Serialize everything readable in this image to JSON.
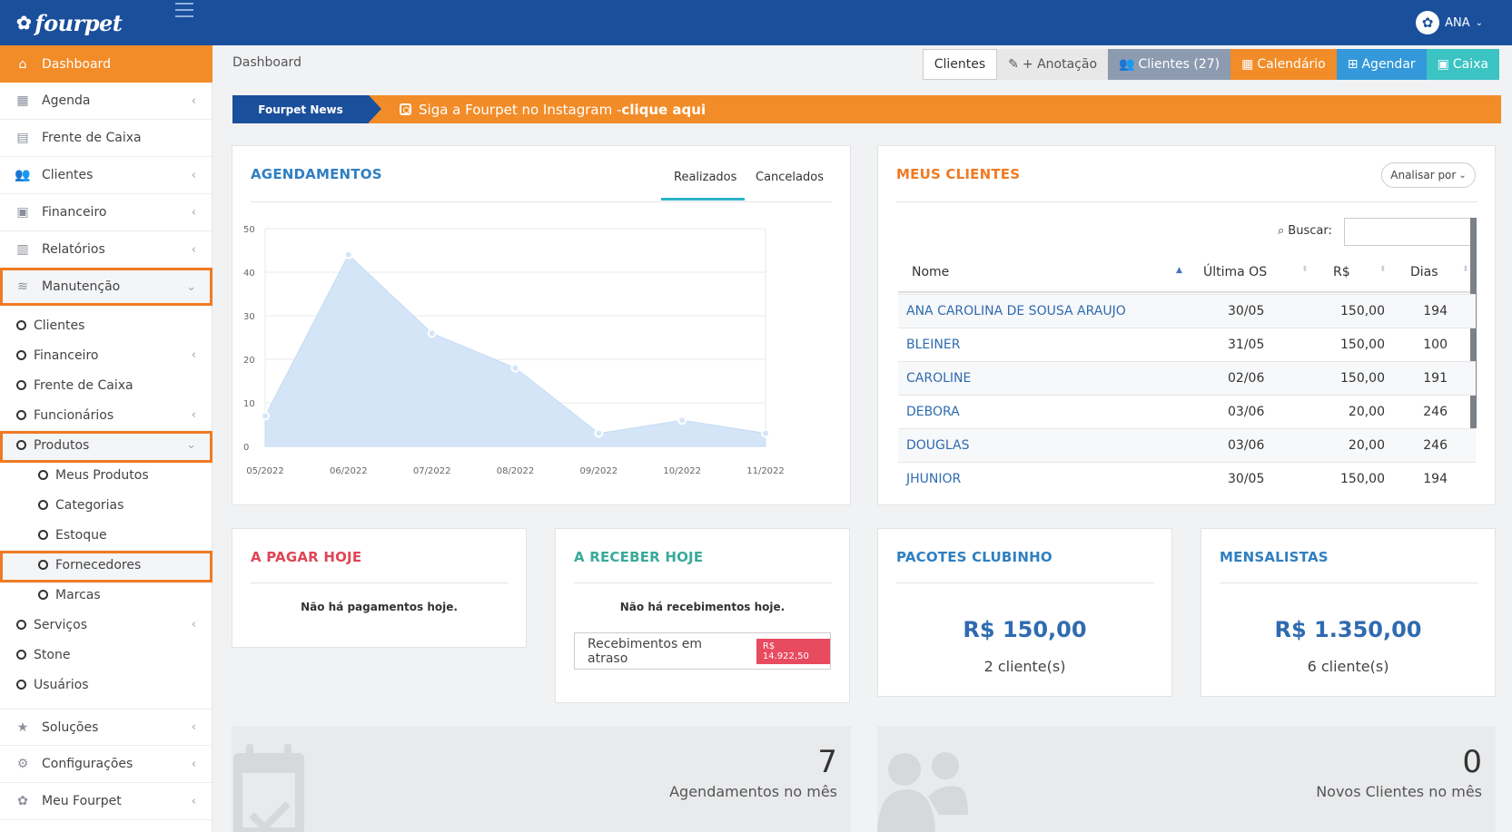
{
  "brand": {
    "name": "fourpet"
  },
  "user": {
    "name": "ANA"
  },
  "sidebar": {
    "items": [
      {
        "label": "Dashboard"
      },
      {
        "label": "Agenda"
      },
      {
        "label": "Frente de Caixa"
      },
      {
        "label": "Clientes"
      },
      {
        "label": "Financeiro"
      },
      {
        "label": "Relatórios"
      },
      {
        "label": "Manutenção"
      }
    ],
    "sub": [
      {
        "label": "Clientes"
      },
      {
        "label": "Financeiro"
      },
      {
        "label": "Frente de Caixa"
      },
      {
        "label": "Funcionários"
      },
      {
        "label": "Produtos"
      },
      {
        "label": "Meus Produtos"
      },
      {
        "label": "Categorias"
      },
      {
        "label": "Estoque"
      },
      {
        "label": "Fornecedores"
      },
      {
        "label": "Marcas"
      },
      {
        "label": "Serviços"
      },
      {
        "label": "Stone"
      },
      {
        "label": "Usuários"
      }
    ],
    "bottom": [
      {
        "label": "Soluções"
      },
      {
        "label": "Configurações"
      },
      {
        "label": "Meu Fourpet"
      }
    ]
  },
  "breadcrumb": "Dashboard",
  "topbuttons": {
    "clientes": "Clientes",
    "anotacao": "+ Anotação",
    "clientes_count": "Clientes (27)",
    "calendario": "Calendário",
    "agendar": "Agendar",
    "caixa": "Caixa"
  },
  "colors": {
    "orange": "#f28c28",
    "blue": "#1a4f9c",
    "gray": "#8d9bb0",
    "sky": "#3498db",
    "teal": "#3cc3c3",
    "red": "#e84a5f",
    "green": "#3aaa9a"
  },
  "news": {
    "label": "Fourpet News",
    "text": "Siga a Fourpet no Instagram - ",
    "link": "clique aqui"
  },
  "agendamentos": {
    "title": "AGENDAMENTOS",
    "tabs": [
      "Realizados",
      "Cancelados"
    ],
    "chart_data": {
      "type": "area",
      "categories": [
        "05/2022",
        "06/2022",
        "07/2022",
        "08/2022",
        "09/2022",
        "10/2022",
        "11/2022"
      ],
      "values": [
        7,
        44,
        26,
        18,
        3,
        6,
        3
      ],
      "ylim": [
        0,
        50
      ],
      "yticks": [
        0,
        10,
        20,
        30,
        40,
        50
      ],
      "grid": true
    }
  },
  "clientes": {
    "title": "MEUS CLIENTES",
    "analisar": "Analisar por",
    "buscar": "Buscar:",
    "columns": [
      "Nome",
      "Última OS",
      "R$",
      "Dias"
    ],
    "rows": [
      [
        "ANA CAROLINA DE SOUSA ARAUJO",
        "30/05",
        "150,00",
        "194"
      ],
      [
        "BLEINER",
        "31/05",
        "150,00",
        "100"
      ],
      [
        "CAROLINE",
        "02/06",
        "150,00",
        "191"
      ],
      [
        "DEBORA",
        "03/06",
        "20,00",
        "246"
      ],
      [
        "DOUGLAS",
        "03/06",
        "20,00",
        "246"
      ],
      [
        "JHUNIOR",
        "30/05",
        "150,00",
        "194"
      ]
    ]
  },
  "pagar": {
    "title": "A PAGAR HOJE",
    "msg": "Não há pagamentos hoje."
  },
  "receber": {
    "title": "A RECEBER HOJE",
    "msg": "Não há recebimentos hoje.",
    "atraso_label": "Recebimentos em atraso",
    "atraso_value": "R$ 14.922,50"
  },
  "pacotes": {
    "title": "PACOTES CLUBINHO",
    "value": "R$ 150,00",
    "count": "2 cliente(s)"
  },
  "mensalistas": {
    "title": "MENSALISTAS",
    "value": "R$ 1.350,00",
    "count": "6 cliente(s)"
  },
  "stats": [
    {
      "value": "7",
      "label": "Agendamentos no mês"
    },
    {
      "value": "0",
      "label": "Novos Clientes no mês"
    }
  ]
}
